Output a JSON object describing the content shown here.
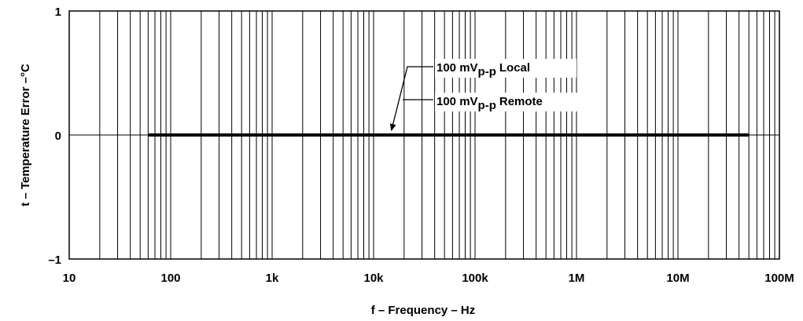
{
  "chart_data": {
    "type": "line",
    "xscale": "log",
    "xlim": [
      10,
      100000000
    ],
    "ylim": [
      -1,
      1
    ],
    "grid": true,
    "xlabel": "f – Frequency – Hz",
    "ylabel": "t – Temperature Error –°C",
    "x_tick_values": [
      10,
      100,
      1000,
      10000,
      100000,
      1000000,
      10000000,
      100000000
    ],
    "x_tick_labels": [
      "10",
      "100",
      "1k",
      "10k",
      "100k",
      "1M",
      "10M",
      "100M"
    ],
    "y_tick_values": [
      1,
      0,
      -1
    ],
    "y_tick_labels": [
      "1",
      "0",
      "–1"
    ],
    "series": [
      {
        "name": "100 mVp-p Local",
        "name_main": "100 mV",
        "name_sub": "p-p",
        "name_tail": "Local",
        "x": [
          60,
          50000000
        ],
        "y": [
          0,
          0
        ],
        "color": "#000000"
      },
      {
        "name": "100 mVp-p Remote",
        "name_main": "100 mV",
        "name_sub": "p-p",
        "name_tail": "Remote",
        "x": [
          60,
          50000000
        ],
        "y": [
          0,
          0
        ],
        "color": "#000000"
      }
    ],
    "annotation_target_x": 15000
  }
}
